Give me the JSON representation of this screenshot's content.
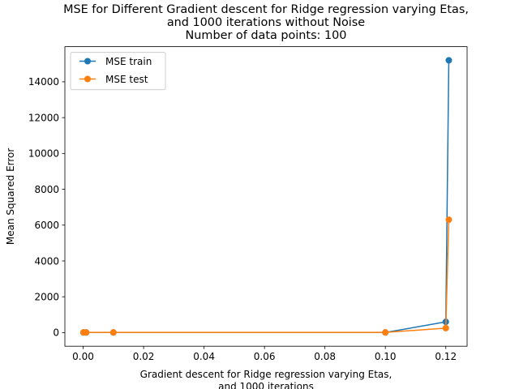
{
  "chart_data": {
    "type": "line",
    "title": [
      "MSE for Different Gradient descent for Ridge regression varying Etas,",
      "and 1000 iterations without Noise",
      "Number of data points: 100"
    ],
    "xlabel": [
      "Gradient descent for Ridge regression varying Etas,",
      "and 1000 iterations"
    ],
    "ylabel": "Mean Squared Error",
    "xlim": [
      -0.00605,
      0.12705
    ],
    "ylim": [
      -760,
      15960
    ],
    "xticks": [
      0.0,
      0.02,
      0.04,
      0.06,
      0.08,
      0.1,
      0.12
    ],
    "xtick_labels": [
      "0.00",
      "0.02",
      "0.04",
      "0.06",
      "0.08",
      "0.10",
      "0.12"
    ],
    "yticks": [
      0,
      2000,
      4000,
      6000,
      8000,
      10000,
      12000,
      14000
    ],
    "ytick_labels": [
      "0",
      "2000",
      "4000",
      "6000",
      "8000",
      "10000",
      "12000",
      "14000"
    ],
    "grid": false,
    "legend_position": "upper-left",
    "series": [
      {
        "name": "MSE train",
        "color": "#1f77b4",
        "x": [
          0.0001,
          0.001,
          0.01,
          0.1,
          0.12,
          0.121
        ],
        "y": [
          5,
          5,
          5,
          5,
          600,
          15200
        ]
      },
      {
        "name": "MSE test",
        "color": "#ff7f0e",
        "x": [
          0.0001,
          0.001,
          0.01,
          0.1,
          0.12,
          0.121
        ],
        "y": [
          10,
          10,
          10,
          10,
          250,
          6300
        ]
      }
    ]
  }
}
